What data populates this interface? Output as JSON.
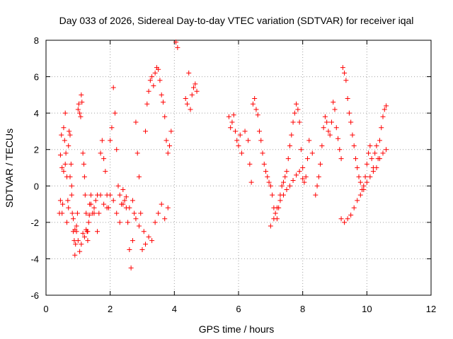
{
  "chart_data": {
    "type": "scatter",
    "title": "Day 033 of 2026, Sidereal Day-to-day VTEC variation (SDTVAR) for receiver iqal",
    "xlabel": "GPS time / hours",
    "ylabel": "SDTVAR / TECUs",
    "xlim": [
      0,
      12
    ],
    "ylim": [
      -6,
      8
    ],
    "xticks": [
      0,
      2,
      4,
      6,
      8,
      10,
      12
    ],
    "yticks": [
      -6,
      -4,
      -2,
      0,
      2,
      4,
      6,
      8
    ],
    "grid": true,
    "marker": "+",
    "color": "#ff0000",
    "series": [
      {
        "name": "SDTVAR",
        "x": [
          0.42,
          0.45,
          0.48,
          0.5,
          0.52,
          0.55,
          0.58,
          0.6,
          0.62,
          0.65,
          0.68,
          0.7,
          0.72,
          0.75,
          0.78,
          0.8,
          0.82,
          0.85,
          0.88,
          0.9,
          0.92,
          0.95,
          0.98,
          1.0,
          1.02,
          1.05,
          1.08,
          1.1,
          1.12,
          1.15,
          1.18,
          1.2,
          1.22,
          1.25,
          1.28,
          1.3,
          1.33,
          1.36,
          1.4,
          1.45,
          1.5,
          1.55,
          1.6,
          1.65,
          1.7,
          1.75,
          1.8,
          1.85,
          1.9,
          1.95,
          2.0,
          2.05,
          2.1,
          2.15,
          2.2,
          2.25,
          2.3,
          2.35,
          2.4,
          2.45,
          2.5,
          2.55,
          2.6,
          2.65,
          2.7,
          2.75,
          2.8,
          2.85,
          2.9,
          2.95,
          3.0,
          3.05,
          3.1,
          3.15,
          3.2,
          3.25,
          3.3,
          3.35,
          3.4,
          3.45,
          3.5,
          3.55,
          3.6,
          3.65,
          3.7,
          3.75,
          3.8,
          3.85,
          3.9,
          4.05,
          4.1,
          4.35,
          4.4,
          4.45,
          4.5,
          4.55,
          4.6,
          4.65,
          4.7,
          0.45,
          0.5,
          0.55,
          0.6,
          0.65,
          0.7,
          0.75,
          0.8,
          0.85,
          0.9,
          0.95,
          1.0,
          1.05,
          1.1,
          1.15,
          1.2,
          1.25,
          1.3,
          1.35,
          1.4,
          1.5,
          1.6,
          1.7,
          1.8,
          1.9,
          2.0,
          2.1,
          2.2,
          2.3,
          2.4,
          2.5,
          2.6,
          2.7,
          2.8,
          2.9,
          3.0,
          3.1,
          3.2,
          3.3,
          3.4,
          3.5,
          3.6,
          3.7,
          3.8,
          5.7,
          5.75,
          5.8,
          5.85,
          5.9,
          5.95,
          6.0,
          6.05,
          6.1,
          6.2,
          6.3,
          6.35,
          6.4,
          6.45,
          6.5,
          6.55,
          6.6,
          6.65,
          6.7,
          6.75,
          6.8,
          6.85,
          6.9,
          6.95,
          7.0,
          7.05,
          7.1,
          7.15,
          7.2,
          7.25,
          7.3,
          7.35,
          7.4,
          7.45,
          7.5,
          7.55,
          7.6,
          7.65,
          7.7,
          7.75,
          7.8,
          7.85,
          7.9,
          7.95,
          8.0,
          8.05,
          8.1,
          8.15,
          8.2,
          8.3,
          8.4,
          8.45,
          8.5,
          8.55,
          8.6,
          8.65,
          8.7,
          8.75,
          8.8,
          8.85,
          8.9,
          8.95,
          9.0,
          9.05,
          9.1,
          9.15,
          9.2,
          9.25,
          9.3,
          9.35,
          9.4,
          9.45,
          9.5,
          9.55,
          9.6,
          9.65,
          9.7,
          9.75,
          9.8,
          9.85,
          9.9,
          9.95,
          10.0,
          10.05,
          10.1,
          10.15,
          10.2,
          10.25,
          10.3,
          10.35,
          10.4,
          10.45,
          10.5,
          10.55,
          10.6,
          7.0,
          7.1,
          7.2,
          7.3,
          7.4,
          7.5,
          7.6,
          7.7,
          7.8,
          7.9,
          8.0,
          9.2,
          9.3,
          9.4,
          9.5,
          9.6,
          9.7,
          9.8,
          9.9,
          10.0,
          10.1,
          10.2,
          10.3,
          10.4,
          10.5,
          10.6
        ],
        "y": [
          -1.5,
          1.7,
          2.8,
          1.0,
          -1.0,
          3.2,
          2.5,
          4.0,
          1.8,
          0.5,
          -0.8,
          2.2,
          3.0,
          2.8,
          1.2,
          -0.5,
          -1.5,
          -2.5,
          -3.0,
          -3.8,
          -3.2,
          -2.5,
          -1.5,
          4.2,
          4.5,
          4.0,
          3.8,
          5.0,
          4.6,
          1.8,
          1.2,
          0.5,
          -0.5,
          -1.5,
          -2.5,
          -3.0,
          -2.0,
          -1.0,
          -0.5,
          -1.5,
          -1.2,
          -0.8,
          -0.5,
          -1.5,
          1.8,
          2.5,
          1.5,
          0.8,
          -0.5,
          -1.2,
          2.5,
          3.2,
          5.4,
          4.0,
          2.0,
          0.0,
          -0.5,
          -1.0,
          -0.2,
          -0.8,
          -1.2,
          -2.0,
          -3.5,
          -4.5,
          -3.0,
          -1.5,
          3.5,
          1.8,
          0.5,
          -1.5,
          -3.5,
          -2.5,
          3.0,
          4.5,
          5.2,
          5.8,
          6.0,
          5.5,
          6.2,
          6.5,
          6.4,
          5.8,
          5.0,
          4.6,
          3.8,
          2.5,
          1.8,
          2.2,
          3.0,
          7.9,
          7.6,
          4.8,
          4.5,
          6.2,
          4.2,
          5.0,
          5.4,
          5.6,
          5.2,
          -0.8,
          -1.5,
          0.8,
          1.2,
          -2.0,
          -1.2,
          0.5,
          0.0,
          -1.8,
          -2.4,
          -2.2,
          -3.0,
          -3.6,
          -3.2,
          -2.6,
          -2.8,
          -2.4,
          -2.5,
          -1.6,
          -1.0,
          -1.5,
          -2.5,
          -0.5,
          -1.0,
          -1.2,
          -0.5,
          -0.8,
          -1.5,
          -2.0,
          -1.0,
          -0.6,
          -1.2,
          -0.8,
          -1.8,
          -2.2,
          -3.5,
          -3.2,
          -2.8,
          -3.0,
          -2.0,
          -1.5,
          -1.0,
          -1.8,
          -1.2,
          3.8,
          3.2,
          3.5,
          3.9,
          3.0,
          2.5,
          2.2,
          2.8,
          1.8,
          3.0,
          2.5,
          1.2,
          0.2,
          4.5,
          4.8,
          4.2,
          3.9,
          3.0,
          2.5,
          1.8,
          1.2,
          0.8,
          0.5,
          0.2,
          0.0,
          -0.5,
          -1.2,
          -1.5,
          -1.8,
          -1.2,
          -0.5,
          0.0,
          0.2,
          0.5,
          0.8,
          1.5,
          2.2,
          2.8,
          3.5,
          4.0,
          4.5,
          4.2,
          3.5,
          2.0,
          1.0,
          0.2,
          0.5,
          1.5,
          2.5,
          1.8,
          -0.5,
          0.0,
          0.5,
          1.2,
          2.2,
          3.2,
          3.8,
          3.5,
          3.0,
          2.8,
          3.5,
          4.6,
          4.2,
          3.2,
          2.6,
          2.0,
          1.5,
          6.5,
          6.2,
          5.8,
          4.8,
          4.0,
          3.5,
          2.8,
          2.2,
          1.5,
          1.0,
          0.5,
          0.2,
          -0.2,
          0.0,
          0.5,
          1.2,
          1.8,
          2.2,
          1.5,
          1.0,
          1.8,
          2.2,
          1.5,
          2.5,
          3.2,
          3.8,
          4.2,
          4.4,
          -2.2,
          -1.8,
          -1.2,
          -0.8,
          -0.5,
          -0.2,
          0.0,
          0.3,
          0.6,
          0.8,
          0.4,
          -1.8,
          -2.0,
          -1.8,
          -1.6,
          -1.2,
          -0.8,
          -0.5,
          -0.2,
          0.2,
          0.5,
          0.8,
          1.0,
          1.5,
          1.8,
          2.0
        ]
      }
    ]
  }
}
